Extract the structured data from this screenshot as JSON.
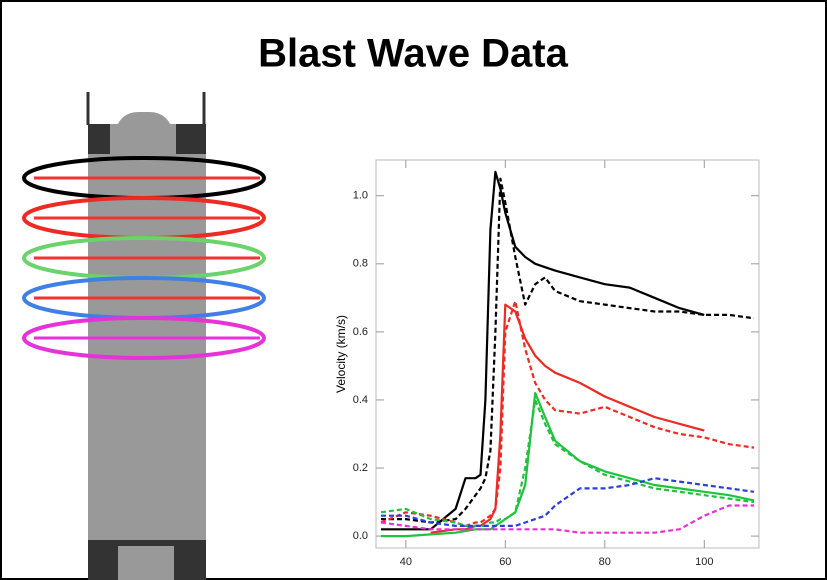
{
  "chart_data": {
    "type": "line",
    "title": "Blast Wave Data",
    "y_label": "Velocity (km/s)",
    "x": [
      35,
      40,
      45,
      50,
      52,
      54,
      55,
      56,
      57,
      58,
      59,
      60,
      62,
      64,
      66,
      68,
      70,
      75,
      80,
      85,
      90,
      95,
      100,
      105,
      110
    ],
    "series": [
      {
        "color": "#000000",
        "dash": false,
        "values": [
          0.02,
          0.02,
          0.02,
          0.08,
          0.17,
          0.17,
          0.18,
          0.4,
          0.9,
          1.07,
          1.02,
          0.95,
          0.85,
          0.82,
          0.8,
          0.79,
          0.78,
          0.76,
          0.74,
          0.73,
          0.7,
          0.67,
          0.65,
          null,
          null
        ]
      },
      {
        "color": "#000000",
        "dash": true,
        "values": [
          0.05,
          0.05,
          0.04,
          0.05,
          0.08,
          0.12,
          0.14,
          0.17,
          0.25,
          0.6,
          1.05,
          0.98,
          0.82,
          0.68,
          0.74,
          0.76,
          0.72,
          0.69,
          0.68,
          0.67,
          0.66,
          0.66,
          0.65,
          0.65,
          0.64
        ]
      },
      {
        "color": "#ee2a24",
        "dash": false,
        "values": [
          null,
          null,
          0.01,
          0.02,
          0.02,
          0.03,
          0.03,
          0.04,
          0.05,
          0.08,
          0.3,
          0.68,
          0.66,
          0.58,
          0.53,
          0.5,
          0.48,
          0.45,
          0.41,
          0.38,
          0.35,
          0.33,
          0.31,
          null,
          null
        ]
      },
      {
        "color": "#ee2a24",
        "dash": true,
        "values": [
          0.04,
          0.07,
          0.06,
          0.04,
          0.03,
          0.04,
          0.04,
          0.05,
          0.06,
          0.08,
          0.2,
          0.6,
          0.69,
          0.55,
          0.45,
          0.4,
          0.37,
          0.36,
          0.38,
          0.35,
          0.32,
          0.3,
          0.29,
          0.27,
          0.26
        ]
      },
      {
        "color": "#1fc23c",
        "dash": false,
        "values": [
          0,
          0,
          0.005,
          0.01,
          0.015,
          0.02,
          0.02,
          0.02,
          0.02,
          0.03,
          0.04,
          0.05,
          0.07,
          0.15,
          0.42,
          0.35,
          0.28,
          0.22,
          0.19,
          0.17,
          0.15,
          0.14,
          0.13,
          0.12,
          0.105
        ]
      },
      {
        "color": "#1fc23c",
        "dash": true,
        "values": [
          0.07,
          0.08,
          0.05,
          0.04,
          0.03,
          0.03,
          0.03,
          0.03,
          0.04,
          0.04,
          0.05,
          0.05,
          0.07,
          0.2,
          0.4,
          0.33,
          0.27,
          0.22,
          0.18,
          0.16,
          0.14,
          0.13,
          0.12,
          0.11,
          0.1
        ]
      },
      {
        "color": "#2b3fdc",
        "dash": true,
        "values": [
          0.06,
          0.06,
          0.04,
          0.03,
          0.03,
          0.03,
          0.03,
          0.03,
          0.03,
          0.03,
          0.03,
          0.03,
          0.03,
          0.04,
          0.05,
          0.06,
          0.09,
          0.14,
          0.14,
          0.15,
          0.17,
          0.16,
          0.15,
          0.14,
          0.13
        ]
      },
      {
        "color": "#e632d6",
        "dash": true,
        "values": [
          0.04,
          0.03,
          0.02,
          0.02,
          0.02,
          0.02,
          0.02,
          0.02,
          0.02,
          0.02,
          0.02,
          0.02,
          0.02,
          0.02,
          0.02,
          0.02,
          0.02,
          0.01,
          0.01,
          0.01,
          0.01,
          0.02,
          0.06,
          0.09,
          0.09
        ]
      }
    ],
    "xlim": [
      34,
      111
    ],
    "ylim": [
      -0.035,
      1.105
    ],
    "xticks": [
      40,
      60,
      80,
      100
    ],
    "yticks": [
      {
        "value": 0,
        "label": "0.0"
      },
      0.2,
      0.4,
      0.6,
      0.8,
      {
        "value": 1,
        "label": "1.0"
      }
    ]
  }
}
